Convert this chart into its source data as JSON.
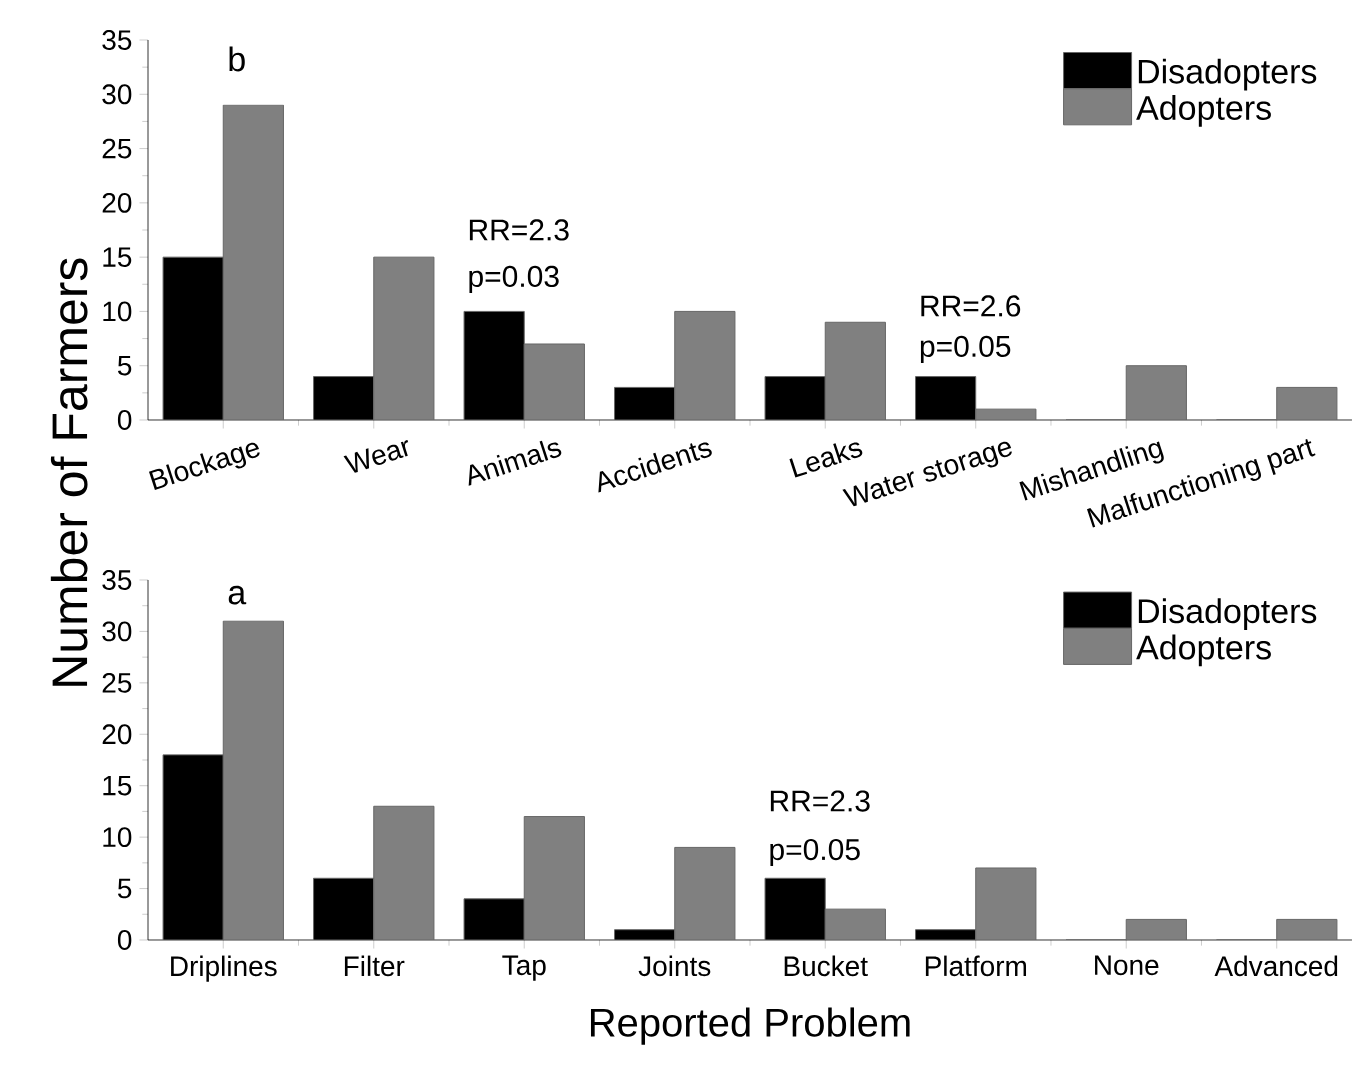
{
  "chart_data": [
    {
      "type": "bar",
      "title": "b",
      "ylabel": "Number of Farmers",
      "categories": [
        "Blockage",
        "Wear",
        "Animals",
        "Accidents",
        "Leaks",
        "Water storage",
        "Mishandling",
        "Malfunctioning part"
      ],
      "series": [
        {
          "name": "Disadopters",
          "color": "#000000",
          "values": [
            15,
            4,
            10,
            3,
            4,
            4,
            0,
            0
          ]
        },
        {
          "name": "Adopters",
          "color": "#808080",
          "values": [
            29,
            15,
            7,
            10,
            9,
            1,
            5,
            3
          ]
        }
      ],
      "ylim": [
        0,
        35
      ],
      "yticks": [
        0,
        5,
        10,
        15,
        20,
        25,
        30,
        35
      ],
      "legend": "top right",
      "annotations": [
        "RR=2.3",
        "p=0.03",
        "RR=2.6",
        "p=0.05"
      ]
    },
    {
      "type": "bar",
      "title": "a",
      "xlabel": "Reported Problem",
      "categories": [
        "Driplines",
        "Filter",
        "Tap",
        "Joints",
        "Bucket",
        "Platform",
        "None",
        "Advanced"
      ],
      "series": [
        {
          "name": "Disadopters",
          "color": "#000000",
          "values": [
            18,
            6,
            4,
            1,
            6,
            1,
            0,
            0
          ]
        },
        {
          "name": "Adopters",
          "color": "#808080",
          "values": [
            31,
            13,
            12,
            9,
            3,
            7,
            2,
            2
          ]
        }
      ],
      "ylim": [
        0,
        35
      ],
      "yticks": [
        0,
        5,
        10,
        15,
        20,
        25,
        30,
        35
      ],
      "legend": "top right",
      "annotations": [
        "RR=2.3",
        "p=0.05"
      ]
    }
  ]
}
